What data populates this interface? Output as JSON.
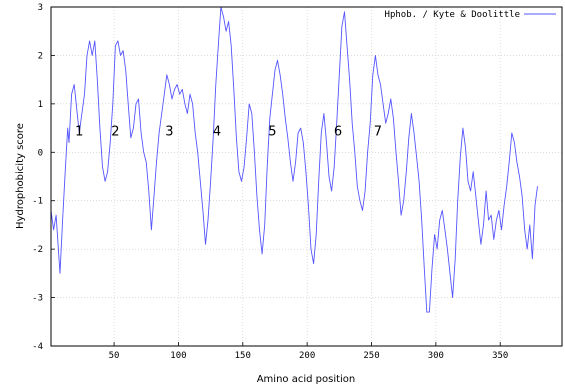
{
  "chart_data": {
    "type": "line",
    "xlabel": "Amino acid position",
    "ylabel": "Hydrophobicity score",
    "xlim": [
      1,
      398
    ],
    "ylim": [
      -4,
      3
    ],
    "x_ticks": [
      50,
      100,
      150,
      200,
      250,
      300,
      350
    ],
    "y_ticks": [
      -4,
      -3,
      -2,
      -1,
      0,
      1,
      2,
      3
    ],
    "grid": true,
    "legend_position": "top-right",
    "series": [
      {
        "name": "Hphob. / Kyte & Doolittle",
        "color": "#5555ff",
        "points": [
          [
            1,
            -1.2
          ],
          [
            3,
            -1.6
          ],
          [
            5,
            -1.3
          ],
          [
            7,
            -2.1
          ],
          [
            8,
            -2.5
          ],
          [
            10,
            -1.4
          ],
          [
            12,
            -0.4
          ],
          [
            14,
            0.5
          ],
          [
            15,
            0.2
          ],
          [
            17,
            1.2
          ],
          [
            19,
            1.4
          ],
          [
            21,
            0.9
          ],
          [
            23,
            0.4
          ],
          [
            25,
            0.8
          ],
          [
            27,
            1.2
          ],
          [
            29,
            2.0
          ],
          [
            31,
            2.3
          ],
          [
            33,
            2.0
          ],
          [
            35,
            2.3
          ],
          [
            37,
            1.5
          ],
          [
            39,
            0.5
          ],
          [
            41,
            -0.3
          ],
          [
            43,
            -0.6
          ],
          [
            45,
            -0.4
          ],
          [
            47,
            0.2
          ],
          [
            49,
            1.0
          ],
          [
            51,
            2.2
          ],
          [
            53,
            2.3
          ],
          [
            55,
            2.0
          ],
          [
            57,
            2.1
          ],
          [
            59,
            1.7
          ],
          [
            61,
            1.0
          ],
          [
            63,
            0.3
          ],
          [
            65,
            0.5
          ],
          [
            67,
            1.0
          ],
          [
            69,
            1.1
          ],
          [
            71,
            0.4
          ],
          [
            73,
            0.0
          ],
          [
            75,
            -0.2
          ],
          [
            77,
            -0.8
          ],
          [
            79,
            -1.6
          ],
          [
            81,
            -0.9
          ],
          [
            83,
            -0.2
          ],
          [
            85,
            0.4
          ],
          [
            87,
            0.8
          ],
          [
            89,
            1.2
          ],
          [
            91,
            1.6
          ],
          [
            93,
            1.4
          ],
          [
            95,
            1.1
          ],
          [
            97,
            1.3
          ],
          [
            99,
            1.4
          ],
          [
            101,
            1.2
          ],
          [
            103,
            1.3
          ],
          [
            105,
            1.0
          ],
          [
            107,
            0.8
          ],
          [
            109,
            1.2
          ],
          [
            111,
            1.0
          ],
          [
            113,
            0.4
          ],
          [
            115,
            0.0
          ],
          [
            117,
            -0.6
          ],
          [
            119,
            -1.2
          ],
          [
            121,
            -1.9
          ],
          [
            123,
            -1.4
          ],
          [
            125,
            -0.6
          ],
          [
            127,
            0.3
          ],
          [
            129,
            1.4
          ],
          [
            131,
            2.2
          ],
          [
            133,
            3.0
          ],
          [
            135,
            2.8
          ],
          [
            137,
            2.5
          ],
          [
            139,
            2.7
          ],
          [
            141,
            2.2
          ],
          [
            143,
            1.3
          ],
          [
            145,
            0.3
          ],
          [
            147,
            -0.4
          ],
          [
            149,
            -0.6
          ],
          [
            151,
            -0.3
          ],
          [
            153,
            0.3
          ],
          [
            155,
            1.0
          ],
          [
            157,
            0.8
          ],
          [
            159,
            0.0
          ],
          [
            161,
            -0.9
          ],
          [
            163,
            -1.6
          ],
          [
            165,
            -2.1
          ],
          [
            167,
            -1.5
          ],
          [
            169,
            -0.3
          ],
          [
            171,
            0.7
          ],
          [
            173,
            1.2
          ],
          [
            175,
            1.7
          ],
          [
            177,
            1.9
          ],
          [
            179,
            1.6
          ],
          [
            181,
            1.2
          ],
          [
            183,
            0.7
          ],
          [
            185,
            0.3
          ],
          [
            187,
            -0.2
          ],
          [
            189,
            -0.6
          ],
          [
            191,
            -0.2
          ],
          [
            193,
            0.4
          ],
          [
            195,
            0.5
          ],
          [
            197,
            0.2
          ],
          [
            199,
            -0.4
          ],
          [
            201,
            -1.1
          ],
          [
            203,
            -2.0
          ],
          [
            205,
            -2.3
          ],
          [
            207,
            -1.7
          ],
          [
            209,
            -0.6
          ],
          [
            211,
            0.4
          ],
          [
            213,
            0.8
          ],
          [
            215,
            0.2
          ],
          [
            217,
            -0.5
          ],
          [
            219,
            -0.8
          ],
          [
            221,
            -0.3
          ],
          [
            223,
            0.6
          ],
          [
            225,
            1.6
          ],
          [
            227,
            2.6
          ],
          [
            229,
            2.9
          ],
          [
            231,
            2.2
          ],
          [
            233,
            1.5
          ],
          [
            235,
            0.6
          ],
          [
            237,
            0.0
          ],
          [
            239,
            -0.7
          ],
          [
            241,
            -1.0
          ],
          [
            243,
            -1.2
          ],
          [
            245,
            -0.8
          ],
          [
            247,
            0.0
          ],
          [
            249,
            0.6
          ],
          [
            251,
            1.6
          ],
          [
            253,
            2.0
          ],
          [
            255,
            1.6
          ],
          [
            257,
            1.4
          ],
          [
            259,
            1.0
          ],
          [
            261,
            0.6
          ],
          [
            263,
            0.8
          ],
          [
            265,
            1.1
          ],
          [
            267,
            0.7
          ],
          [
            269,
            0.0
          ],
          [
            271,
            -0.6
          ],
          [
            273,
            -1.3
          ],
          [
            275,
            -1.0
          ],
          [
            277,
            -0.4
          ],
          [
            279,
            0.3
          ],
          [
            281,
            0.8
          ],
          [
            283,
            0.4
          ],
          [
            285,
            -0.1
          ],
          [
            287,
            -0.6
          ],
          [
            289,
            -1.4
          ],
          [
            291,
            -2.4
          ],
          [
            293,
            -3.3
          ],
          [
            295,
            -3.3
          ],
          [
            297,
            -2.4
          ],
          [
            299,
            -1.7
          ],
          [
            301,
            -2.0
          ],
          [
            303,
            -1.4
          ],
          [
            305,
            -1.2
          ],
          [
            307,
            -1.6
          ],
          [
            309,
            -2.0
          ],
          [
            311,
            -2.5
          ],
          [
            313,
            -3.0
          ],
          [
            315,
            -2.2
          ],
          [
            317,
            -1.0
          ],
          [
            319,
            -0.1
          ],
          [
            321,
            0.5
          ],
          [
            323,
            0.1
          ],
          [
            325,
            -0.6
          ],
          [
            327,
            -0.8
          ],
          [
            329,
            -0.4
          ],
          [
            331,
            -0.9
          ],
          [
            333,
            -1.4
          ],
          [
            335,
            -1.9
          ],
          [
            337,
            -1.5
          ],
          [
            339,
            -0.8
          ],
          [
            341,
            -1.4
          ],
          [
            343,
            -1.3
          ],
          [
            345,
            -1.8
          ],
          [
            347,
            -1.4
          ],
          [
            349,
            -1.2
          ],
          [
            351,
            -1.6
          ],
          [
            353,
            -1.1
          ],
          [
            355,
            -0.7
          ],
          [
            357,
            -0.2
          ],
          [
            359,
            0.4
          ],
          [
            361,
            0.2
          ],
          [
            363,
            -0.2
          ],
          [
            365,
            -0.5
          ],
          [
            367,
            -0.9
          ],
          [
            369,
            -1.6
          ],
          [
            371,
            -2.0
          ],
          [
            373,
            -1.5
          ],
          [
            375,
            -2.2
          ],
          [
            377,
            -1.1
          ],
          [
            379,
            -0.7
          ]
        ]
      }
    ],
    "annotations": [
      {
        "text": "1",
        "x": 23,
        "y": 0.35
      },
      {
        "text": "2",
        "x": 51,
        "y": 0.35
      },
      {
        "text": "3",
        "x": 93,
        "y": 0.35
      },
      {
        "text": "4",
        "x": 130,
        "y": 0.35
      },
      {
        "text": "5",
        "x": 173,
        "y": 0.35
      },
      {
        "text": "6",
        "x": 224,
        "y": 0.35
      },
      {
        "text": "7",
        "x": 255,
        "y": 0.35
      }
    ]
  }
}
